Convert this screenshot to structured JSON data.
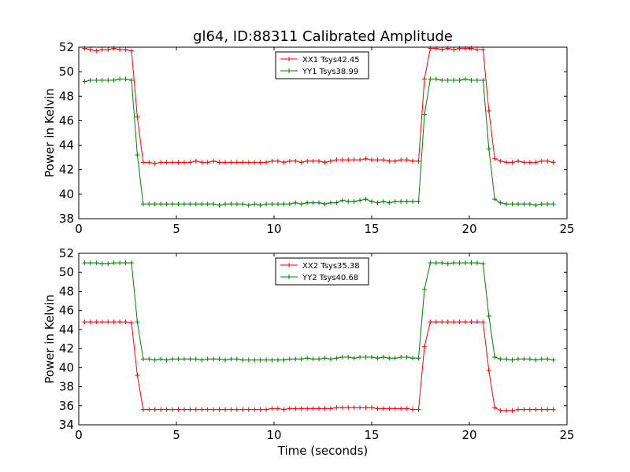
{
  "figure": {
    "title": "gl64, ID:88311 Calibrated Amplitude",
    "xlabel": "Time (seconds)"
  },
  "chart_data": [
    {
      "type": "line",
      "ylabel": "Power in Kelvin",
      "xlim": [
        0,
        25
      ],
      "ylim": [
        38,
        52
      ],
      "xticks": [
        0,
        5,
        10,
        15,
        20,
        25
      ],
      "yticks": [
        38,
        40,
        42,
        44,
        46,
        48,
        50,
        52
      ],
      "grid": false,
      "legend": "top-center",
      "series": [
        {
          "name": "XX1 Tsys42.45",
          "color": "#ff0000",
          "x": [
            0.3,
            0.6,
            0.9,
            1.2,
            1.5,
            1.8,
            2.1,
            2.4,
            2.7,
            3.0,
            3.3,
            3.6,
            3.9,
            4.2,
            4.5,
            4.8,
            5.1,
            5.4,
            5.7,
            6.0,
            6.3,
            6.6,
            6.9,
            7.2,
            7.5,
            7.8,
            8.1,
            8.4,
            8.7,
            9.0,
            9.3,
            9.6,
            9.9,
            10.2,
            10.5,
            10.8,
            11.1,
            11.4,
            11.7,
            12.0,
            12.3,
            12.6,
            12.9,
            13.2,
            13.5,
            13.8,
            14.1,
            14.4,
            14.7,
            15.0,
            15.3,
            15.6,
            15.9,
            16.2,
            16.5,
            16.8,
            17.1,
            17.4,
            17.7,
            18.0,
            18.3,
            18.6,
            18.9,
            19.2,
            19.5,
            19.8,
            20.1,
            20.4,
            20.7,
            21.0,
            21.3,
            21.6,
            21.9,
            22.2,
            22.5,
            22.8,
            23.1,
            23.4,
            23.7,
            24.0,
            24.3
          ],
          "y": [
            51.9,
            51.8,
            51.7,
            51.8,
            51.8,
            51.9,
            51.8,
            51.8,
            51.7,
            46.3,
            42.6,
            42.6,
            42.5,
            42.6,
            42.6,
            42.6,
            42.6,
            42.6,
            42.6,
            42.7,
            42.6,
            42.6,
            42.7,
            42.6,
            42.6,
            42.6,
            42.6,
            42.6,
            42.6,
            42.6,
            42.6,
            42.6,
            42.7,
            42.7,
            42.6,
            42.7,
            42.7,
            42.6,
            42.7,
            42.7,
            42.7,
            42.6,
            42.7,
            42.8,
            42.8,
            42.8,
            42.8,
            42.8,
            42.9,
            42.8,
            42.8,
            42.8,
            42.7,
            42.7,
            42.8,
            42.8,
            42.7,
            42.7,
            49.4,
            51.9,
            51.9,
            51.8,
            51.9,
            51.8,
            51.9,
            51.9,
            51.9,
            51.8,
            51.8,
            46.8,
            42.9,
            42.7,
            42.6,
            42.6,
            42.7,
            42.6,
            42.6,
            42.6,
            42.7,
            42.7,
            42.6
          ]
        },
        {
          "name": "YY1 Tsys38.99",
          "color": "#008000",
          "x": [
            0.3,
            0.6,
            0.9,
            1.2,
            1.5,
            1.8,
            2.1,
            2.4,
            2.7,
            3.0,
            3.3,
            3.6,
            3.9,
            4.2,
            4.5,
            4.8,
            5.1,
            5.4,
            5.7,
            6.0,
            6.3,
            6.6,
            6.9,
            7.2,
            7.5,
            7.8,
            8.1,
            8.4,
            8.7,
            9.0,
            9.3,
            9.6,
            9.9,
            10.2,
            10.5,
            10.8,
            11.1,
            11.4,
            11.7,
            12.0,
            12.3,
            12.6,
            12.9,
            13.2,
            13.5,
            13.8,
            14.1,
            14.4,
            14.7,
            15.0,
            15.3,
            15.6,
            15.9,
            16.2,
            16.5,
            16.8,
            17.1,
            17.4,
            17.7,
            18.0,
            18.3,
            18.6,
            18.9,
            19.2,
            19.5,
            19.8,
            20.1,
            20.4,
            20.7,
            21.0,
            21.3,
            21.6,
            21.9,
            22.2,
            22.5,
            22.8,
            23.1,
            23.4,
            23.7,
            24.0,
            24.3
          ],
          "y": [
            49.2,
            49.3,
            49.3,
            49.3,
            49.3,
            49.3,
            49.4,
            49.4,
            49.3,
            43.2,
            39.2,
            39.2,
            39.2,
            39.2,
            39.2,
            39.2,
            39.2,
            39.2,
            39.2,
            39.2,
            39.2,
            39.2,
            39.2,
            39.1,
            39.2,
            39.2,
            39.2,
            39.2,
            39.1,
            39.2,
            39.1,
            39.2,
            39.2,
            39.2,
            39.2,
            39.2,
            39.3,
            39.2,
            39.3,
            39.3,
            39.3,
            39.2,
            39.3,
            39.3,
            39.5,
            39.4,
            39.4,
            39.5,
            39.6,
            39.4,
            39.3,
            39.4,
            39.3,
            39.4,
            39.4,
            39.4,
            39.4,
            39.4,
            46.5,
            49.4,
            49.4,
            49.3,
            49.3,
            49.3,
            49.3,
            49.4,
            49.3,
            49.3,
            49.3,
            43.7,
            39.6,
            39.3,
            39.2,
            39.2,
            39.2,
            39.2,
            39.2,
            39.1,
            39.2,
            39.2,
            39.2
          ]
        }
      ]
    },
    {
      "type": "line",
      "ylabel": "Power in Kelvin",
      "xlim": [
        0,
        25
      ],
      "ylim": [
        34,
        52
      ],
      "xticks": [
        0,
        5,
        10,
        15,
        20,
        25
      ],
      "yticks": [
        34,
        36,
        38,
        40,
        42,
        44,
        46,
        48,
        50,
        52
      ],
      "grid": false,
      "legend": "top-center",
      "series": [
        {
          "name": "XX2 Tsys35.38",
          "color": "#ff0000",
          "x": [
            0.3,
            0.6,
            0.9,
            1.2,
            1.5,
            1.8,
            2.1,
            2.4,
            2.7,
            3.0,
            3.3,
            3.6,
            3.9,
            4.2,
            4.5,
            4.8,
            5.1,
            5.4,
            5.7,
            6.0,
            6.3,
            6.6,
            6.9,
            7.2,
            7.5,
            7.8,
            8.1,
            8.4,
            8.7,
            9.0,
            9.3,
            9.6,
            9.9,
            10.2,
            10.5,
            10.8,
            11.1,
            11.4,
            11.7,
            12.0,
            12.3,
            12.6,
            12.9,
            13.2,
            13.5,
            13.8,
            14.1,
            14.4,
            14.7,
            15.0,
            15.3,
            15.6,
            15.9,
            16.2,
            16.5,
            16.8,
            17.1,
            17.4,
            17.7,
            18.0,
            18.3,
            18.6,
            18.9,
            19.2,
            19.5,
            19.8,
            20.1,
            20.4,
            20.7,
            21.0,
            21.3,
            21.6,
            21.9,
            22.2,
            22.5,
            22.8,
            23.1,
            23.4,
            23.7,
            24.0,
            24.3
          ],
          "y": [
            44.8,
            44.8,
            44.8,
            44.8,
            44.8,
            44.8,
            44.8,
            44.8,
            44.7,
            39.2,
            35.6,
            35.6,
            35.6,
            35.6,
            35.6,
            35.6,
            35.6,
            35.6,
            35.6,
            35.6,
            35.6,
            35.6,
            35.6,
            35.6,
            35.6,
            35.6,
            35.6,
            35.6,
            35.6,
            35.6,
            35.6,
            35.6,
            35.7,
            35.7,
            35.6,
            35.7,
            35.7,
            35.7,
            35.7,
            35.7,
            35.7,
            35.7,
            35.7,
            35.8,
            35.8,
            35.8,
            35.8,
            35.8,
            35.8,
            35.8,
            35.7,
            35.7,
            35.7,
            35.7,
            35.7,
            35.7,
            35.6,
            35.6,
            42.2,
            44.8,
            44.8,
            44.8,
            44.8,
            44.8,
            44.8,
            44.8,
            44.8,
            44.8,
            44.8,
            39.7,
            35.8,
            35.5,
            35.5,
            35.5,
            35.6,
            35.6,
            35.6,
            35.6,
            35.6,
            35.6,
            35.6
          ]
        },
        {
          "name": "YY2 Tsys40.68",
          "color": "#008000",
          "x": [
            0.3,
            0.6,
            0.9,
            1.2,
            1.5,
            1.8,
            2.1,
            2.4,
            2.7,
            3.0,
            3.3,
            3.6,
            3.9,
            4.2,
            4.5,
            4.8,
            5.1,
            5.4,
            5.7,
            6.0,
            6.3,
            6.6,
            6.9,
            7.2,
            7.5,
            7.8,
            8.1,
            8.4,
            8.7,
            9.0,
            9.3,
            9.6,
            9.9,
            10.2,
            10.5,
            10.8,
            11.1,
            11.4,
            11.7,
            12.0,
            12.3,
            12.6,
            12.9,
            13.2,
            13.5,
            13.8,
            14.1,
            14.4,
            14.7,
            15.0,
            15.3,
            15.6,
            15.9,
            16.2,
            16.5,
            16.8,
            17.1,
            17.4,
            17.7,
            18.0,
            18.3,
            18.6,
            18.9,
            19.2,
            19.5,
            19.8,
            20.1,
            20.4,
            20.7,
            21.0,
            21.3,
            21.6,
            21.9,
            22.2,
            22.5,
            22.8,
            23.1,
            23.4,
            23.7,
            24.0,
            24.3
          ],
          "y": [
            51.0,
            51.0,
            51.0,
            50.9,
            50.9,
            51.0,
            51.0,
            51.0,
            51.0,
            44.8,
            40.9,
            40.9,
            40.8,
            40.9,
            40.8,
            40.9,
            40.9,
            40.9,
            40.9,
            40.9,
            40.8,
            40.9,
            40.9,
            40.9,
            40.8,
            40.9,
            40.9,
            40.8,
            40.8,
            40.8,
            40.8,
            40.8,
            40.8,
            40.8,
            40.8,
            40.9,
            40.9,
            40.9,
            41.0,
            40.9,
            40.9,
            41.0,
            40.9,
            41.0,
            41.1,
            41.1,
            41.0,
            41.1,
            41.1,
            41.1,
            41.0,
            41.1,
            41.0,
            41.0,
            41.1,
            41.1,
            41.0,
            41.0,
            48.2,
            51.0,
            51.0,
            51.0,
            50.9,
            51.0,
            51.0,
            51.0,
            51.0,
            51.0,
            50.9,
            45.4,
            41.1,
            40.9,
            40.9,
            40.8,
            40.9,
            40.9,
            40.9,
            40.8,
            40.9,
            40.9,
            40.8
          ]
        }
      ]
    }
  ]
}
